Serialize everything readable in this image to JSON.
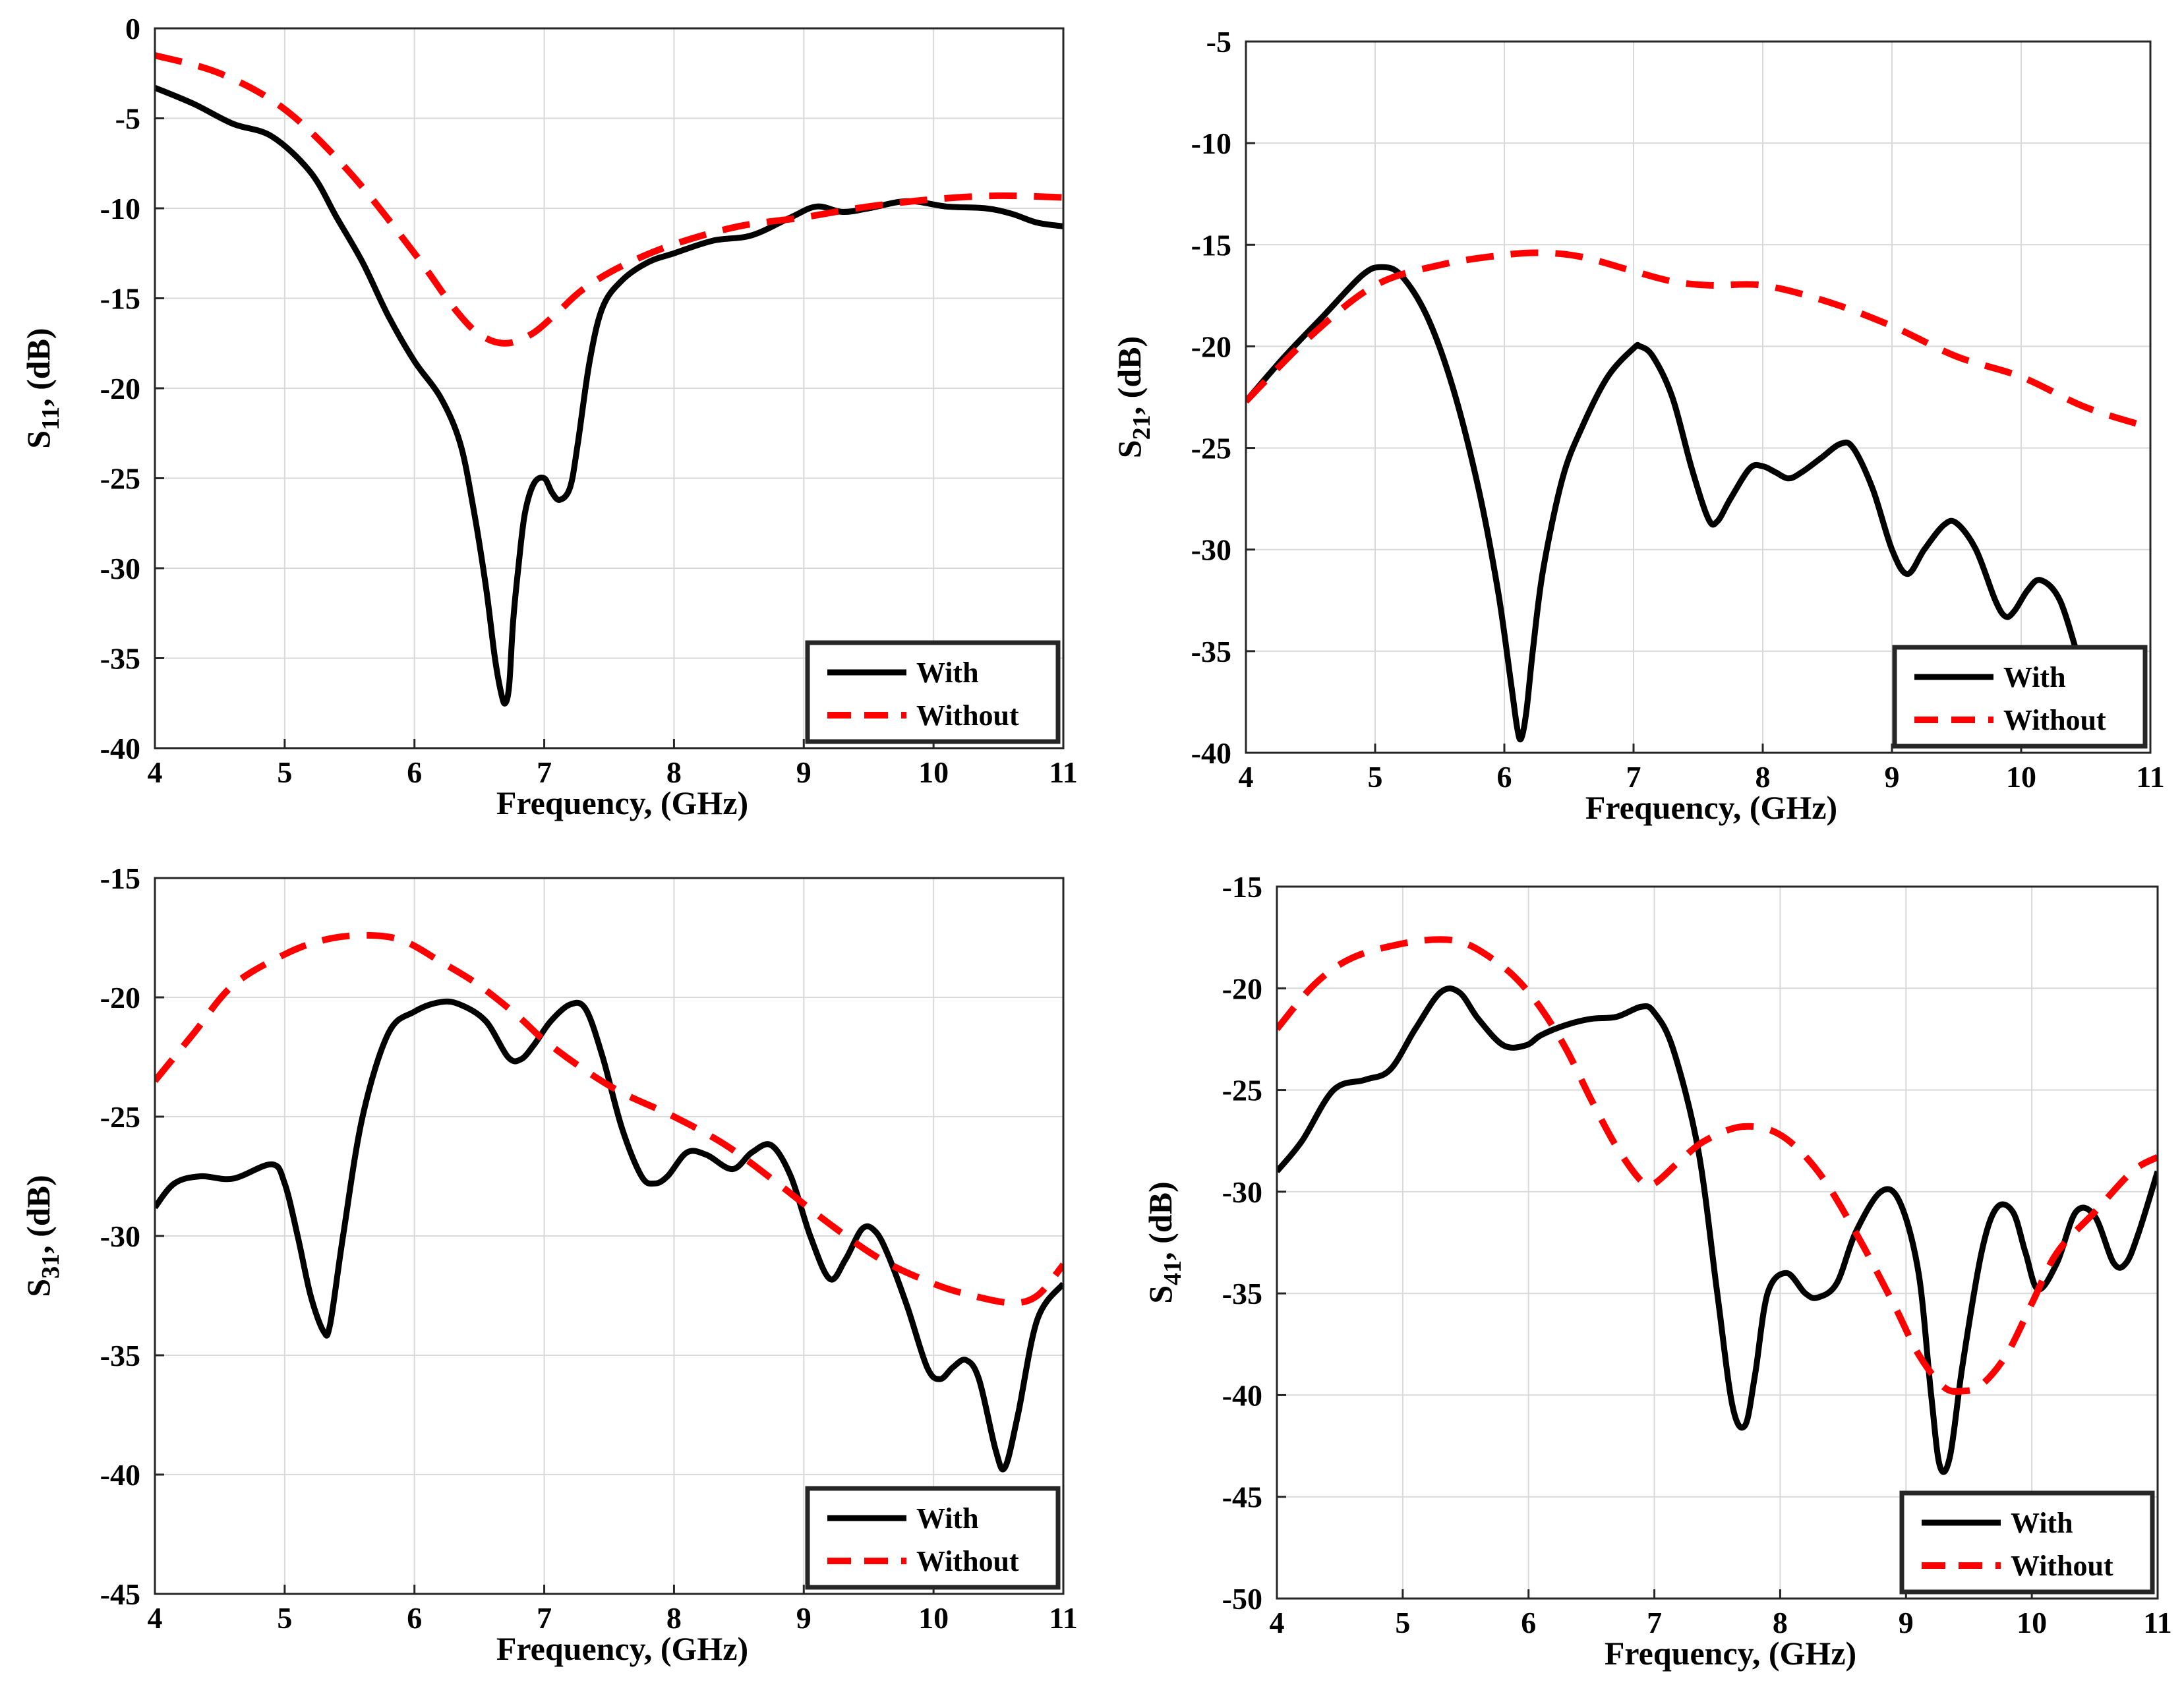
{
  "colors": {
    "with": "#000000",
    "without": "#ff0000",
    "grid": "#d9d9d9",
    "axis": "#262626"
  },
  "chart_data": [
    {
      "id": "s11",
      "type": "line",
      "ylabel_main": "S",
      "ylabel_sub": "11",
      "ylabel_rest": ", (dB)",
      "xlabel": "Frequency, (GHz)",
      "xlim": [
        4,
        11
      ],
      "ylim": [
        -40,
        0
      ],
      "xticks": [
        4,
        5,
        6,
        7,
        8,
        9,
        10,
        11
      ],
      "yticks": [
        0,
        -5,
        -10,
        -15,
        -20,
        -25,
        -30,
        -35,
        -40
      ],
      "legend": {
        "position": "bottom-right",
        "entries": [
          "With",
          "Without"
        ]
      },
      "series": [
        {
          "name": "With",
          "style": "solid",
          "x": [
            4,
            4.3,
            4.6,
            4.9,
            5.2,
            5.4,
            5.6,
            5.8,
            6.0,
            6.2,
            6.35,
            6.45,
            6.55,
            6.62,
            6.67,
            6.7,
            6.73,
            6.76,
            6.8,
            6.85,
            6.92,
            7.0,
            7.06,
            7.12,
            7.2,
            7.26,
            7.35,
            7.45,
            7.6,
            7.8,
            8.0,
            8.3,
            8.6,
            8.9,
            9.1,
            9.3,
            9.5,
            9.8,
            10.1,
            10.4,
            10.6,
            10.8,
            11
          ],
          "y": [
            -3.3,
            -4.2,
            -5.3,
            -6.0,
            -8.0,
            -10.5,
            -13.0,
            -16.0,
            -18.5,
            -20.5,
            -23.0,
            -26.5,
            -31.0,
            -35.0,
            -37.0,
            -37.5,
            -36.5,
            -33.0,
            -30.0,
            -27.0,
            -25.3,
            -25.0,
            -25.8,
            -26.2,
            -25.5,
            -23.0,
            -18.5,
            -15.5,
            -14.0,
            -13.0,
            -12.5,
            -11.8,
            -11.5,
            -10.5,
            -9.9,
            -10.2,
            -10.0,
            -9.6,
            -9.9,
            -10.0,
            -10.3,
            -10.8,
            -11.0
          ]
        },
        {
          "name": "Without",
          "style": "dashed",
          "x": [
            4,
            4.5,
            5.0,
            5.5,
            6.0,
            6.3,
            6.5,
            6.7,
            6.9,
            7.1,
            7.3,
            7.6,
            8.0,
            8.5,
            9.0,
            9.5,
            10.0,
            10.5,
            11
          ],
          "y": [
            -1.5,
            -2.5,
            -4.5,
            -8.0,
            -12.5,
            -15.5,
            -17.0,
            -17.5,
            -17.0,
            -15.8,
            -14.5,
            -13.2,
            -12.0,
            -11.0,
            -10.5,
            -9.9,
            -9.5,
            -9.3,
            -9.4
          ]
        }
      ]
    },
    {
      "id": "s21",
      "type": "line",
      "ylabel_main": "S",
      "ylabel_sub": "21",
      "ylabel_rest": ", (dB)",
      "xlabel": "Frequency, (GHz)",
      "xlim": [
        4,
        11
      ],
      "ylim": [
        -40,
        -5
      ],
      "xticks": [
        4,
        5,
        6,
        7,
        8,
        9,
        10,
        11
      ],
      "yticks": [
        -5,
        -10,
        -15,
        -20,
        -25,
        -30,
        -35,
        -40
      ],
      "legend": {
        "position": "bottom-right",
        "entries": [
          "With",
          "Without"
        ]
      },
      "series": [
        {
          "name": "With",
          "style": "solid",
          "x": [
            4,
            4.3,
            4.6,
            4.9,
            5.05,
            5.2,
            5.4,
            5.6,
            5.8,
            5.95,
            6.05,
            6.1,
            6.13,
            6.17,
            6.22,
            6.3,
            6.45,
            6.6,
            6.8,
            7.0,
            7.05,
            7.15,
            7.3,
            7.45,
            7.58,
            7.65,
            7.75,
            7.9,
            8.0,
            8.1,
            8.2,
            8.3,
            8.45,
            8.6,
            8.7,
            8.85,
            9.0,
            9.12,
            9.25,
            9.4,
            9.5,
            9.65,
            9.8,
            9.88,
            9.95,
            10.05,
            10.15,
            10.3,
            10.45
          ],
          "y": [
            -22.7,
            -20.5,
            -18.5,
            -16.5,
            -16.1,
            -16.5,
            -18.5,
            -22.0,
            -27.0,
            -32.0,
            -36.5,
            -38.8,
            -39.3,
            -38.0,
            -35.0,
            -31.0,
            -26.5,
            -24.0,
            -21.5,
            -20.1,
            -20.0,
            -20.5,
            -22.5,
            -26.0,
            -28.5,
            -28.6,
            -27.5,
            -26.0,
            -25.9,
            -26.2,
            -26.5,
            -26.2,
            -25.5,
            -24.8,
            -25.0,
            -27.0,
            -30.0,
            -31.2,
            -30.0,
            -28.8,
            -28.7,
            -30.0,
            -32.5,
            -33.3,
            -33.0,
            -32.0,
            -31.5,
            -32.5,
            -35.5
          ]
        },
        {
          "name": "Without",
          "style": "dashed",
          "x": [
            4,
            4.5,
            5.0,
            5.5,
            6.0,
            6.3,
            6.6,
            7.0,
            7.3,
            7.6,
            8.0,
            8.5,
            9.0,
            9.5,
            10.0,
            10.5,
            11
          ],
          "y": [
            -22.7,
            -19.5,
            -17.0,
            -16.0,
            -15.5,
            -15.4,
            -15.6,
            -16.3,
            -16.8,
            -17.0,
            -17.0,
            -17.8,
            -19.0,
            -20.5,
            -21.5,
            -23.0,
            -24.0
          ]
        }
      ]
    },
    {
      "id": "s31",
      "type": "line",
      "ylabel_main": "S",
      "ylabel_sub": "31",
      "ylabel_rest": ", (dB)",
      "xlabel": "Frequency, (GHz)",
      "xlim": [
        4,
        11
      ],
      "ylim": [
        -45,
        -15
      ],
      "xticks": [
        4,
        5,
        6,
        7,
        8,
        9,
        10,
        11
      ],
      "yticks": [
        -15,
        -20,
        -25,
        -30,
        -35,
        -40,
        -45
      ],
      "legend": {
        "position": "bottom-right",
        "entries": [
          "With",
          "Without"
        ]
      },
      "series": [
        {
          "name": "With",
          "style": "solid",
          "x": [
            4,
            4.15,
            4.35,
            4.6,
            4.9,
            5.0,
            5.1,
            5.2,
            5.3,
            5.35,
            5.45,
            5.6,
            5.8,
            6.0,
            6.2,
            6.35,
            6.55,
            6.72,
            6.82,
            6.92,
            7.05,
            7.2,
            7.32,
            7.45,
            7.6,
            7.75,
            7.85,
            7.95,
            8.1,
            8.25,
            8.45,
            8.6,
            8.75,
            8.9,
            9.05,
            9.2,
            9.32,
            9.45,
            9.55,
            9.65,
            9.8,
            9.95,
            10.05,
            10.15,
            10.25,
            10.35,
            10.48,
            10.55,
            10.65,
            10.8,
            11
          ],
          "y": [
            -28.8,
            -27.8,
            -27.5,
            -27.6,
            -27.0,
            -27.8,
            -30.0,
            -32.5,
            -34.0,
            -33.7,
            -30.0,
            -25.0,
            -21.5,
            -20.6,
            -20.2,
            -20.3,
            -21.0,
            -22.5,
            -22.6,
            -22.0,
            -21.0,
            -20.3,
            -20.5,
            -22.5,
            -25.5,
            -27.5,
            -27.8,
            -27.5,
            -26.5,
            -26.6,
            -27.2,
            -26.5,
            -26.2,
            -27.5,
            -30.0,
            -31.8,
            -31.0,
            -29.7,
            -29.8,
            -30.8,
            -33.0,
            -35.5,
            -36.0,
            -35.5,
            -35.2,
            -36.0,
            -39.0,
            -39.7,
            -37.5,
            -33.5,
            -32.0
          ]
        },
        {
          "name": "Without",
          "style": "dashed",
          "x": [
            4,
            4.3,
            4.6,
            5.0,
            5.3,
            5.6,
            5.9,
            6.2,
            6.5,
            6.8,
            7.0,
            7.3,
            7.6,
            8.0,
            8.4,
            8.8,
            9.2,
            9.6,
            10.0,
            10.3,
            10.6,
            10.8,
            11
          ],
          "y": [
            -23.5,
            -21.5,
            -19.5,
            -18.2,
            -17.6,
            -17.4,
            -17.6,
            -18.5,
            -19.5,
            -20.8,
            -21.8,
            -23.0,
            -24.0,
            -25.0,
            -26.2,
            -27.8,
            -29.5,
            -31.0,
            -32.0,
            -32.5,
            -32.8,
            -32.5,
            -31.2
          ]
        }
      ]
    },
    {
      "id": "s41",
      "type": "line",
      "ylabel_main": "S",
      "ylabel_sub": "41",
      "ylabel_rest": ", (dB)",
      "xlabel": "Frequency, (GHz)",
      "xlim": [
        4,
        11
      ],
      "ylim": [
        -50,
        -15
      ],
      "xticks": [
        4,
        5,
        6,
        7,
        8,
        9,
        10,
        11
      ],
      "yticks": [
        -15,
        -20,
        -25,
        -30,
        -35,
        -40,
        -45,
        -50
      ],
      "legend": {
        "position": "bottom-right",
        "entries": [
          "With",
          "Without"
        ]
      },
      "series": [
        {
          "name": "With",
          "style": "solid",
          "x": [
            4,
            4.2,
            4.45,
            4.7,
            4.9,
            5.1,
            5.3,
            5.45,
            5.6,
            5.8,
            5.98,
            6.1,
            6.3,
            6.5,
            6.7,
            6.9,
            7.0,
            7.15,
            7.35,
            7.5,
            7.62,
            7.72,
            7.8,
            7.9,
            8.05,
            8.2,
            8.3,
            8.45,
            8.6,
            8.8,
            8.95,
            9.1,
            9.2,
            9.27,
            9.35,
            9.45,
            9.6,
            9.72,
            9.85,
            9.95,
            10.05,
            10.2,
            10.35,
            10.5,
            10.65,
            10.75,
            10.85,
            11
          ],
          "y": [
            -29.0,
            -27.5,
            -25.0,
            -24.5,
            -24.0,
            -22.0,
            -20.2,
            -20.2,
            -21.5,
            -22.8,
            -22.8,
            -22.3,
            -21.8,
            -21.5,
            -21.4,
            -20.9,
            -21.2,
            -23.0,
            -28.0,
            -35.0,
            -40.5,
            -41.5,
            -39.0,
            -35.0,
            -34.0,
            -35.0,
            -35.2,
            -34.5,
            -32.0,
            -30.0,
            -30.5,
            -34.0,
            -40.0,
            -43.5,
            -43.0,
            -38.5,
            -33.0,
            -30.8,
            -31.0,
            -33.0,
            -34.8,
            -33.5,
            -31.0,
            -31.2,
            -33.5,
            -33.5,
            -32.0,
            -29.0
          ]
        },
        {
          "name": "Without",
          "style": "dashed",
          "x": [
            4,
            4.3,
            4.6,
            5.0,
            5.3,
            5.5,
            5.7,
            5.9,
            6.1,
            6.3,
            6.5,
            6.7,
            6.9,
            7.0,
            7.2,
            7.4,
            7.7,
            8.0,
            8.3,
            8.6,
            8.9,
            9.1,
            9.3,
            9.45,
            9.6,
            9.8,
            10.0,
            10.2,
            10.5,
            10.8,
            11
          ],
          "y": [
            -22.0,
            -19.8,
            -18.5,
            -17.8,
            -17.6,
            -17.8,
            -18.5,
            -19.5,
            -21.0,
            -23.0,
            -25.5,
            -27.8,
            -29.5,
            -29.6,
            -28.5,
            -27.5,
            -26.8,
            -27.2,
            -29.0,
            -32.0,
            -35.5,
            -38.0,
            -39.6,
            -39.8,
            -39.5,
            -38.0,
            -35.5,
            -33.0,
            -31.0,
            -29.0,
            -28.3
          ]
        }
      ]
    }
  ]
}
